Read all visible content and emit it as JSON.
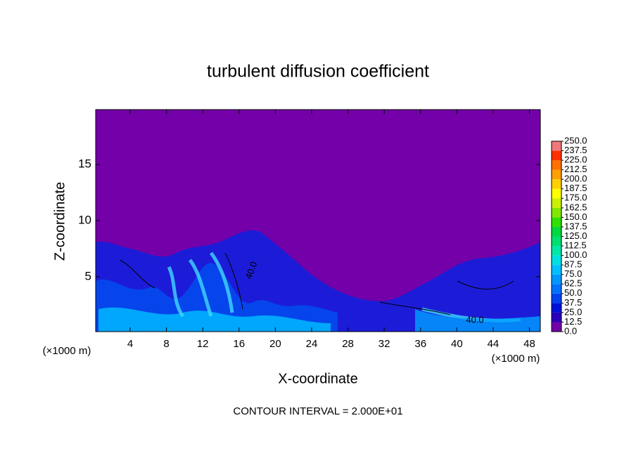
{
  "chart_data": {
    "type": "heatmap",
    "title": "turbulent diffusion coefficient",
    "x_label": "X-coordinate",
    "y_label": "Z-coordinate",
    "x_unit_left": "(×1000 m)",
    "x_unit_right": "(×1000 m)",
    "annotation": "CONTOUR INTERVAL = 2.000E+01",
    "contour_labels": [
      "40.0",
      "40.0"
    ],
    "xlim": [
      0.2,
      49.2
    ],
    "ylim": [
      0.1,
      19.9
    ],
    "xticks": [
      4,
      8,
      12,
      16,
      20,
      24,
      28,
      32,
      36,
      40,
      44,
      48
    ],
    "yticks": [
      5,
      10,
      15
    ],
    "background_color": "#7300a8",
    "colorbar": {
      "levels": [
        {
          "value": 0,
          "label": "0.0"
        },
        {
          "value": 12.5,
          "label": "12.5"
        },
        {
          "value": 25,
          "label": "25.0"
        },
        {
          "value": 37.5,
          "label": "37.5"
        },
        {
          "value": 50,
          "label": "50.0"
        },
        {
          "value": 62.5,
          "label": "62.5"
        },
        {
          "value": 75,
          "label": "75.0"
        },
        {
          "value": 87.5,
          "label": "87.5"
        },
        {
          "value": 100,
          "label": "100.0"
        },
        {
          "value": 112.5,
          "label": "112.5"
        },
        {
          "value": 125,
          "label": "125.0"
        },
        {
          "value": 137.5,
          "label": "137.5"
        },
        {
          "value": 150,
          "label": "150.0"
        },
        {
          "value": 162.5,
          "label": "162.5"
        },
        {
          "value": 175,
          "label": "175.0"
        },
        {
          "value": 187.5,
          "label": "187.5"
        },
        {
          "value": 200,
          "label": "200.0"
        },
        {
          "value": 212.5,
          "label": "212.5"
        },
        {
          "value": 225,
          "label": "225.0"
        },
        {
          "value": 237.5,
          "label": "237.5"
        },
        {
          "value": 250,
          "label": "250.0"
        }
      ],
      "colors": [
        "#7300a8",
        "#2a00b8",
        "#0010d8",
        "#0040f0",
        "#0070ff",
        "#0098ff",
        "#00c0ff",
        "#00e0e0",
        "#00e8a8",
        "#00e070",
        "#00d840",
        "#30e000",
        "#80e800",
        "#c8f000",
        "#ffff00",
        "#ffd000",
        "#ffa000",
        "#ff7000",
        "#ff3000",
        "#f07878"
      ]
    }
  }
}
